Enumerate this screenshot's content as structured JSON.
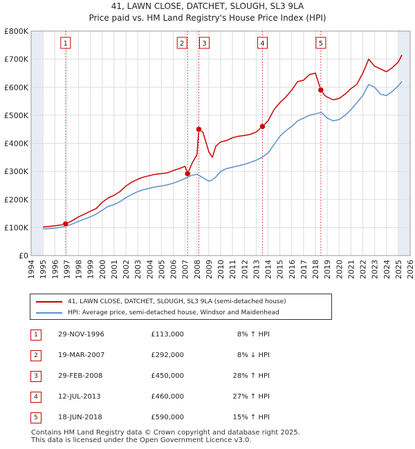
{
  "title_line1": "41, LAWN CLOSE, DATCHET, SLOUGH, SL3 9LA",
  "title_line2": "Price paid vs. HM Land Registry's House Price Index (HPI)",
  "colors": {
    "property": "#cc0000",
    "hpi": "#5b8fd0",
    "shade": "#e8edf5",
    "grid": "#dddddd",
    "marker": "#cc0000"
  },
  "legend": {
    "property": "41, LAWN CLOSE, DATCHET, SLOUGH, SL3 9LA (semi-detached house)",
    "hpi": "HPI: Average price, semi-detached house, Windsor and Maidenhead"
  },
  "transactions": [
    {
      "num": "1",
      "date": "29-NOV-1996",
      "price": "£113,000",
      "hpi": "8% ↑ HPI"
    },
    {
      "num": "2",
      "date": "19-MAR-2007",
      "price": "£292,000",
      "hpi": "8% ↓ HPI"
    },
    {
      "num": "3",
      "date": "29-FEB-2008",
      "price": "£450,000",
      "hpi": "28% ↑ HPI"
    },
    {
      "num": "4",
      "date": "12-JUL-2013",
      "price": "£460,000",
      "hpi": "27% ↑ HPI"
    },
    {
      "num": "5",
      "date": "18-JUN-2018",
      "price": "£590,000",
      "hpi": "15% ↑ HPI"
    }
  ],
  "footer_line1": "Contains HM Land Registry data © Crown copyright and database right 2025.",
  "footer_line2": "This data is licensed under the Open Government Licence v3.0.",
  "chart_data": {
    "type": "line",
    "x_range": [
      1994,
      2026
    ],
    "ylim": [
      0,
      800000
    ],
    "y_ticks": [
      0,
      100000,
      200000,
      300000,
      400000,
      500000,
      600000,
      700000,
      800000
    ],
    "y_tick_labels": [
      "£0",
      "£100K",
      "£200K",
      "£300K",
      "£400K",
      "£500K",
      "£600K",
      "£700K",
      "£800K"
    ],
    "x_ticks": [
      1994,
      1995,
      1996,
      1997,
      1998,
      1999,
      2000,
      2001,
      2002,
      2003,
      2004,
      2005,
      2006,
      2007,
      2008,
      2009,
      2010,
      2011,
      2012,
      2013,
      2014,
      2015,
      2016,
      2017,
      2018,
      2019,
      2020,
      2021,
      2022,
      2023,
      2024,
      2025,
      2026
    ],
    "grid": true,
    "shaded_regions": [
      [
        1994,
        1995
      ],
      [
        2025,
        2026
      ]
    ],
    "sales": [
      {
        "label": "1",
        "x": 1996.91,
        "y": 113000
      },
      {
        "label": "2",
        "x": 2007.21,
        "y": 292000
      },
      {
        "label": "3",
        "x": 2008.16,
        "y": 450000
      },
      {
        "label": "4",
        "x": 2013.53,
        "y": 460000
      },
      {
        "label": "5",
        "x": 2018.46,
        "y": 590000
      }
    ],
    "series": [
      {
        "name": "41, LAWN CLOSE, DATCHET, SLOUGH, SL3 9LA (semi-detached house)",
        "x": [
          1995,
          1995.5,
          1996,
          1996.5,
          1996.91,
          1997.5,
          1998,
          1998.5,
          1999,
          1999.5,
          2000,
          2000.5,
          2001,
          2001.5,
          2002,
          2002.5,
          2003,
          2003.5,
          2004,
          2004.5,
          2005,
          2005.5,
          2006,
          2006.5,
          2007,
          2007.21,
          2007.6,
          2008,
          2008.16,
          2008.5,
          2009,
          2009.3,
          2009.6,
          2010,
          2010.5,
          2011,
          2011.5,
          2012,
          2012.5,
          2013,
          2013.53,
          2014,
          2014.5,
          2015,
          2015.5,
          2016,
          2016.5,
          2017,
          2017.5,
          2018,
          2018.46,
          2018.8,
          2019,
          2019.5,
          2020,
          2020.5,
          2021,
          2021.5,
          2022,
          2022.5,
          2023,
          2023.5,
          2024,
          2024.5,
          2025,
          2025.3
        ],
        "values": [
          102000,
          104000,
          106000,
          109000,
          113000,
          125000,
          138000,
          148000,
          158000,
          168000,
          190000,
          205000,
          215000,
          228000,
          248000,
          262000,
          272000,
          280000,
          285000,
          290000,
          292000,
          295000,
          303000,
          310000,
          318000,
          292000,
          330000,
          360000,
          450000,
          440000,
          370000,
          350000,
          390000,
          405000,
          410000,
          420000,
          425000,
          428000,
          432000,
          440000,
          460000,
          480000,
          520000,
          545000,
          565000,
          590000,
          620000,
          625000,
          645000,
          650000,
          590000,
          570000,
          565000,
          555000,
          560000,
          575000,
          595000,
          610000,
          650000,
          700000,
          675000,
          665000,
          655000,
          670000,
          690000,
          715000
        ]
      },
      {
        "name": "HPI: Average price, semi-detached house, Windsor and Maidenhead",
        "x": [
          1995,
          1995.5,
          1996,
          1996.5,
          1997,
          1997.5,
          1998,
          1998.5,
          1999,
          1999.5,
          2000,
          2000.5,
          2001,
          2001.5,
          2002,
          2002.5,
          2003,
          2003.5,
          2004,
          2004.5,
          2005,
          2005.5,
          2006,
          2006.5,
          2007,
          2007.5,
          2008,
          2008.5,
          2009,
          2009.3,
          2009.6,
          2010,
          2010.5,
          2011,
          2011.5,
          2012,
          2012.5,
          2013,
          2013.5,
          2014,
          2014.5,
          2015,
          2015.5,
          2016,
          2016.5,
          2017,
          2017.5,
          2018,
          2018.5,
          2019,
          2019.5,
          2020,
          2020.5,
          2021,
          2021.5,
          2022,
          2022.5,
          2023,
          2023.5,
          2024,
          2024.5,
          2025,
          2025.3
        ],
        "values": [
          95000,
          96000,
          98000,
          101000,
          105000,
          113000,
          122000,
          130000,
          138000,
          148000,
          162000,
          175000,
          182000,
          192000,
          206000,
          218000,
          228000,
          235000,
          240000,
          245000,
          248000,
          252000,
          258000,
          266000,
          275000,
          285000,
          290000,
          278000,
          265000,
          270000,
          280000,
          300000,
          310000,
          315000,
          320000,
          325000,
          332000,
          340000,
          350000,
          365000,
          395000,
          425000,
          445000,
          460000,
          480000,
          490000,
          500000,
          505000,
          510000,
          490000,
          480000,
          485000,
          500000,
          520000,
          545000,
          570000,
          610000,
          600000,
          575000,
          570000,
          585000,
          605000,
          620000
        ]
      }
    ]
  }
}
